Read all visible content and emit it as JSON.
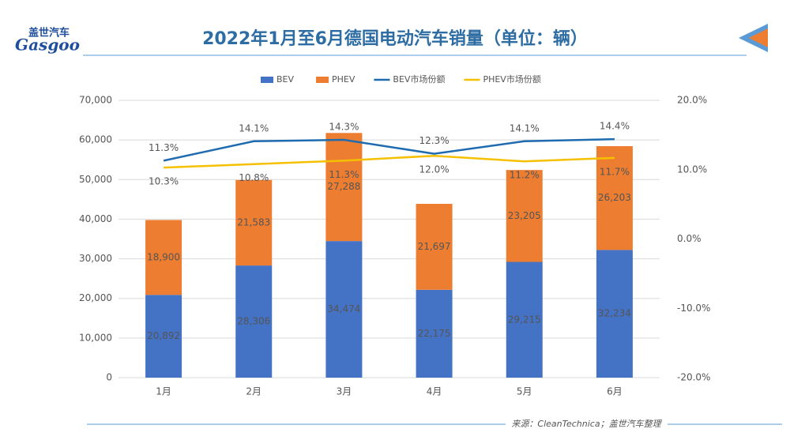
{
  "header": {
    "logo_cn": "盖世汽车",
    "logo_en": "Gasgoo"
  },
  "chart_data": {
    "type": "bar",
    "stacked": true,
    "title": "2022年1月至6月德国电动汽车销量（单位：辆）",
    "source": "来源：CleanTechnica；盖世汽车整理",
    "categories": [
      "1月",
      "2月",
      "3月",
      "4月",
      "5月",
      "6月"
    ],
    "series": [
      {
        "name": "BEV",
        "type": "bar",
        "color": "#4472c4",
        "values": [
          20892,
          28306,
          34474,
          22175,
          29215,
          32234
        ],
        "value_labels": [
          "20,892",
          "28,306",
          "34,474",
          "22,175",
          "29,215",
          "32,234"
        ]
      },
      {
        "name": "PHEV",
        "type": "bar",
        "color": "#ed7d31",
        "values": [
          18900,
          21583,
          27288,
          21697,
          23205,
          26203
        ],
        "value_labels": [
          "18,900",
          "21,583",
          "27,288",
          "21,697",
          "23,205",
          "26,203"
        ]
      },
      {
        "name": "BEV市场份额",
        "type": "line",
        "axis": "y2",
        "color": "#1f6bb0",
        "values": [
          11.3,
          14.1,
          14.3,
          12.3,
          14.1,
          14.4
        ],
        "value_labels": [
          "11.3%",
          "14.1%",
          "14.3%",
          "12.3%",
          "14.1%",
          "14.4%"
        ]
      },
      {
        "name": "PHEV市场份额",
        "type": "line",
        "axis": "y2",
        "color": "#f5c000",
        "values": [
          10.3,
          10.8,
          11.3,
          12.0,
          11.2,
          11.7
        ],
        "value_labels": [
          "10.3%",
          "10.8%",
          "11.3%",
          "12.0%",
          "11.2%",
          "11.7%"
        ]
      }
    ],
    "ylim": [
      0,
      70000
    ],
    "yticks": [
      0,
      {
        "value": 10000,
        "label": "10,000"
      },
      {
        "value": 20000,
        "label": "20,000"
      },
      {
        "value": 30000,
        "label": "30,000"
      },
      {
        "value": 40000,
        "label": "40,000"
      },
      {
        "value": 50000,
        "label": "50,000"
      },
      {
        "value": 60000,
        "label": "60,000"
      },
      {
        "value": 70000,
        "label": "70,000"
      }
    ],
    "y2lim": [
      -20,
      20
    ],
    "y2ticks": [
      {
        "value": -20,
        "label": "-20.0%"
      },
      {
        "value": -10,
        "label": "-10.0%"
      },
      {
        "value": 0,
        "label": "0.0%"
      },
      {
        "value": 10,
        "label": "10.0%"
      },
      {
        "value": 20,
        "label": "20.0%"
      }
    ],
    "grid": true,
    "legend": "top"
  }
}
